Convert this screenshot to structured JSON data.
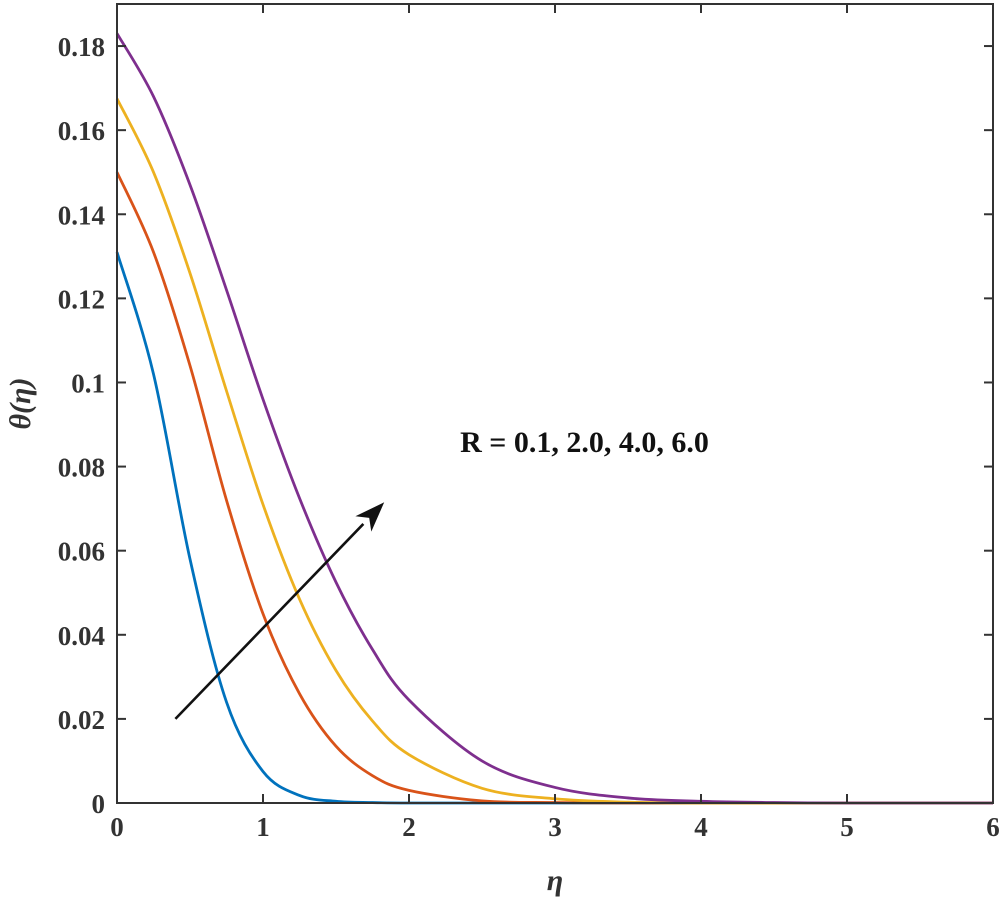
{
  "chart_data": {
    "type": "line",
    "title": "",
    "xlabel": "η",
    "ylabel": "θ(η)",
    "xlim": [
      0,
      6
    ],
    "ylim": [
      0,
      0.19
    ],
    "grid": false,
    "x_ticks": [
      {
        "value": 0,
        "label": "0"
      },
      {
        "value": 1,
        "label": "1"
      },
      {
        "value": 2,
        "label": "2"
      },
      {
        "value": 3,
        "label": "3"
      },
      {
        "value": 4,
        "label": "4"
      },
      {
        "value": 5,
        "label": "5"
      },
      {
        "value": 6,
        "label": "6"
      }
    ],
    "y_ticks": [
      {
        "value": 0,
        "label": "0"
      },
      {
        "value": 0.02,
        "label": "0.02"
      },
      {
        "value": 0.04,
        "label": "0.04"
      },
      {
        "value": 0.06,
        "label": "0.06"
      },
      {
        "value": 0.08,
        "label": "0.08"
      },
      {
        "value": 0.1,
        "label": "0.1"
      },
      {
        "value": 0.12,
        "label": "0.12"
      },
      {
        "value": 0.14,
        "label": "0.14"
      },
      {
        "value": 0.16,
        "label": "0.16"
      },
      {
        "value": 0.18,
        "label": "0.18"
      }
    ],
    "x": [
      0,
      0.25,
      0.5,
      0.75,
      1.0,
      1.25,
      1.5,
      1.75,
      2.0,
      2.5,
      3.0,
      3.5,
      4.0,
      4.5,
      5.0,
      5.5,
      6.0
    ],
    "series": [
      {
        "color": "#0072BD",
        "values": [
          0.131,
          0.102,
          0.058,
          0.024,
          0.0075,
          0.0018,
          0.0004,
          0.0001,
          0.0,
          0.0,
          0.0,
          0.0,
          0.0,
          0.0,
          0.0,
          0.0,
          0.0
        ]
      },
      {
        "color": "#D95319",
        "values": [
          0.15,
          0.131,
          0.104,
          0.072,
          0.045,
          0.026,
          0.0135,
          0.0065,
          0.003,
          0.0005,
          0.0001,
          0.0,
          0.0,
          0.0,
          0.0,
          0.0,
          0.0
        ]
      },
      {
        "color": "#EDB120",
        "values": [
          0.1675,
          0.15,
          0.126,
          0.098,
          0.071,
          0.0485,
          0.0315,
          0.0195,
          0.0115,
          0.0035,
          0.001,
          0.0002,
          0.0,
          0.0,
          0.0,
          0.0,
          0.0
        ]
      },
      {
        "color": "#7E2F8E",
        "values": [
          0.183,
          0.168,
          0.147,
          0.122,
          0.096,
          0.0725,
          0.0525,
          0.0365,
          0.0245,
          0.01,
          0.0037,
          0.0012,
          0.0004,
          0.0001,
          0.0,
          0.0,
          0.0
        ]
      }
    ],
    "annotations": [
      {
        "text": "R = 0.1, 2.0, 4.0, 6.0",
        "x": 2.35,
        "y": 0.0835
      },
      {
        "type": "arrow",
        "from": [
          0.4,
          0.02
        ],
        "to": [
          1.83,
          0.0715
        ]
      }
    ]
  }
}
